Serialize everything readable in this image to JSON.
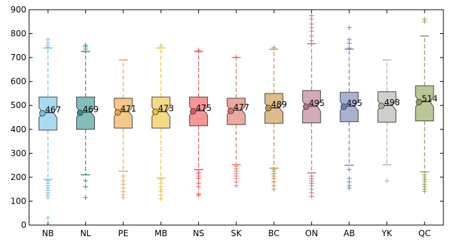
{
  "chart_data": {
    "type": "boxplot",
    "notched": true,
    "title": "",
    "xlabel": "",
    "ylabel": "",
    "ylim": [
      0,
      900
    ],
    "yticks": [
      0,
      100,
      200,
      300,
      400,
      500,
      600,
      700,
      800,
      900
    ],
    "grid": false,
    "categories": [
      "NB",
      "NL",
      "PE",
      "MB",
      "NS",
      "SK",
      "BC",
      "ON",
      "AB",
      "YK",
      "QC"
    ],
    "series": [
      {
        "category": "NB",
        "color": "#6ec1ea",
        "q1": 397,
        "median": 470,
        "q3": 535,
        "whisker_low": 190,
        "whisker_high": 740,
        "mean": 467,
        "mean_label": "467",
        "outliers": [
          30,
          115,
          125,
          135,
          145,
          155,
          165,
          175,
          185,
          742,
          750,
          760,
          775
        ]
      },
      {
        "category": "NL",
        "color": "#2f8f8f",
        "q1": 400,
        "median": 472,
        "q3": 535,
        "whisker_low": 210,
        "whisker_high": 725,
        "mean": 469,
        "mean_label": "469",
        "outliers": [
          115,
          160,
          185,
          735,
          745,
          752
        ]
      },
      {
        "category": "PE",
        "color": "#f0a43c",
        "q1": 405,
        "median": 474,
        "q3": 530,
        "whisker_low": 225,
        "whisker_high": 690,
        "mean": 471,
        "mean_label": "471",
        "outliers": [
          115,
          125,
          140,
          155,
          170,
          185,
          205
        ]
      },
      {
        "category": "MB",
        "color": "#f0c030",
        "q1": 405,
        "median": 474,
        "q3": 535,
        "whisker_low": 197,
        "whisker_high": 740,
        "mean": 473,
        "mean_label": "473",
        "outliers": [
          110,
          125,
          140,
          150,
          160,
          175,
          190,
          750
        ]
      },
      {
        "category": "NS",
        "color": "#f05050",
        "q1": 415,
        "median": 478,
        "q3": 535,
        "whisker_low": 232,
        "whisker_high": 725,
        "mean": 475,
        "mean_label": "475",
        "outliers": [
          125,
          130,
          160,
          175,
          195,
          205,
          215,
          222,
          730
        ]
      },
      {
        "category": "SK",
        "color": "#e07060",
        "q1": 420,
        "median": 480,
        "q3": 530,
        "whisker_low": 252,
        "whisker_high": 700,
        "mean": 477,
        "mean_label": "477",
        "outliers": [
          165,
          180,
          195,
          205,
          215,
          225,
          235,
          245,
          702
        ]
      },
      {
        "category": "BC",
        "color": "#c8903a",
        "q1": 425,
        "median": 490,
        "q3": 550,
        "whisker_low": 238,
        "whisker_high": 735,
        "mean": 489,
        "mean_label": "489",
        "outliers": [
          150,
          165,
          180,
          195,
          205,
          215,
          225,
          232,
          742
        ]
      },
      {
        "category": "ON",
        "color": "#b8708c",
        "q1": 427,
        "median": 497,
        "q3": 562,
        "whisker_low": 218,
        "whisker_high": 758,
        "mean": 495,
        "mean_label": "495",
        "outliers": [
          120,
          135,
          150,
          165,
          175,
          185,
          195,
          205,
          770,
          790,
          810,
          825,
          840,
          860,
          875
        ]
      },
      {
        "category": "AB",
        "color": "#6a7fb5",
        "q1": 432,
        "median": 497,
        "q3": 555,
        "whisker_low": 250,
        "whisker_high": 735,
        "mean": 495,
        "mean_label": "495",
        "outliers": [
          155,
          165,
          180,
          195,
          232,
          740,
          760,
          775,
          825
        ]
      },
      {
        "category": "YK",
        "color": "#b0b0a8",
        "q1": 430,
        "median": 500,
        "q3": 557,
        "whisker_low": 252,
        "whisker_high": 690,
        "mean": 498,
        "mean_label": "498",
        "outliers": [
          185
        ]
      },
      {
        "category": "QC",
        "color": "#8aa050",
        "q1": 435,
        "median": 516,
        "q3": 582,
        "whisker_low": 222,
        "whisker_high": 790,
        "mean": 514,
        "mean_label": "514",
        "outliers": [
          140,
          150,
          160,
          170,
          180,
          190,
          200,
          210,
          850,
          860
        ]
      }
    ]
  }
}
